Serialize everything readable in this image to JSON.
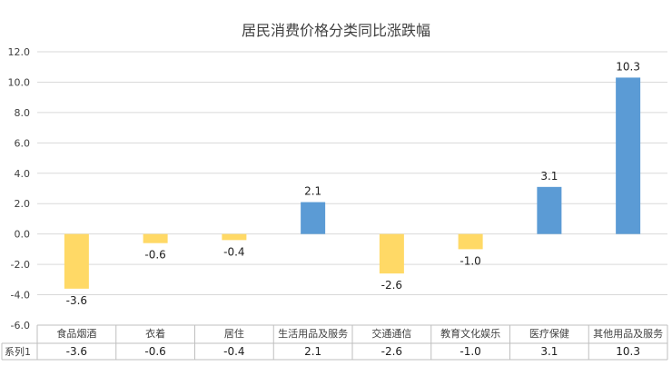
{
  "chart_data": {
    "type": "bar",
    "title": "居民消费价格分类同比涨跌幅",
    "categories": [
      "食品烟酒",
      "衣着",
      "居住",
      "生活用品及服务",
      "交通通信",
      "教育文化娱乐",
      "医疗保健",
      "其他用品及服务"
    ],
    "series": [
      {
        "name": "系列1",
        "values": [
          -3.6,
          -0.6,
          -0.4,
          2.1,
          -2.6,
          -1.0,
          3.1,
          10.3
        ]
      }
    ],
    "value_labels": [
      "-3.6",
      "-0.6",
      "-0.4",
      "2.1",
      "-2.6",
      "-1.0",
      "3.1",
      "10.3"
    ],
    "ylim": [
      -6.0,
      12.0
    ],
    "y_ticks": [
      "12.0",
      "10.0",
      "8.0",
      "6.0",
      "4.0",
      "2.0",
      "0.0",
      "-2.0",
      "-4.0",
      "-6.0"
    ],
    "grid": true,
    "data_table": true,
    "colors": {
      "positive": "#5b9bd5",
      "negative": "#ffd966"
    }
  }
}
